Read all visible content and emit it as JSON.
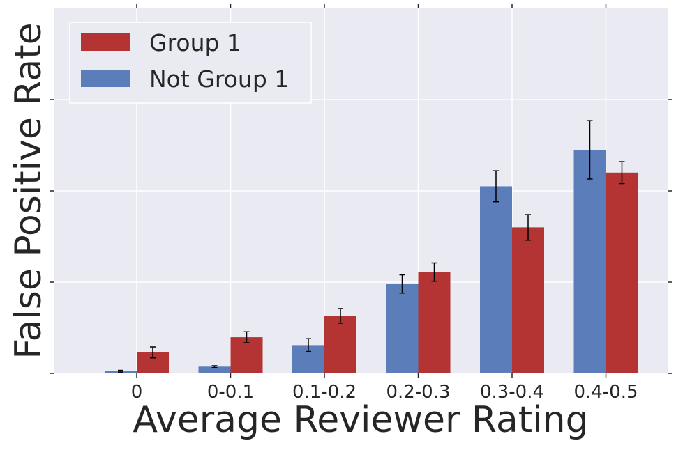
{
  "chart_data": {
    "type": "bar",
    "title": "",
    "xlabel": "Average Reviewer Rating",
    "ylabel": "False Positive Rate",
    "categories": [
      "0",
      "0-0.1",
      "0.1-0.2",
      "0.2-0.3",
      "0.3-0.4",
      "0.4-0.5"
    ],
    "ylim": [
      0,
      0.2
    ],
    "ytick_values": [
      0,
      0.05,
      0.1,
      0.15
    ],
    "ytick_labels_shown": false,
    "grid": true,
    "legend_position": "top-left",
    "series": [
      {
        "name": "Not Group 1",
        "color": "#5b7db9",
        "values": [
          0.0012,
          0.0037,
          0.0155,
          0.049,
          0.1025,
          0.1225
        ],
        "err_low": [
          0.0005,
          0.0005,
          0.0035,
          0.005,
          0.0085,
          0.016
        ],
        "err_high": [
          0.0005,
          0.0005,
          0.0035,
          0.005,
          0.0085,
          0.016
        ]
      },
      {
        "name": "Group 1",
        "color": "#b33432",
        "values": [
          0.0115,
          0.0198,
          0.0315,
          0.0555,
          0.08,
          0.11
        ],
        "err_low": [
          0.003,
          0.003,
          0.004,
          0.005,
          0.007,
          0.006
        ],
        "err_high": [
          0.003,
          0.003,
          0.004,
          0.005,
          0.007,
          0.006
        ]
      }
    ],
    "legend_order": [
      "Group 1",
      "Not Group 1"
    ]
  }
}
